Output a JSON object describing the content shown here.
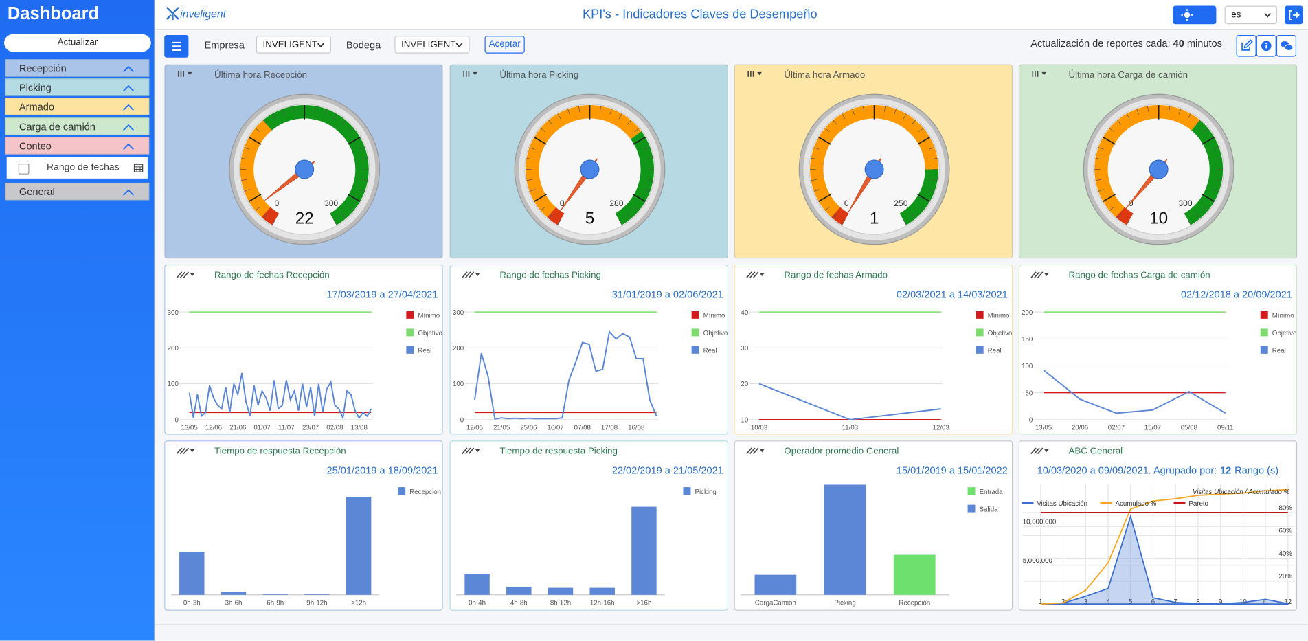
{
  "sidebar": {
    "title": "Dashboard",
    "refresh_button": "Actualizar",
    "sections": [
      "Recepción",
      "Picking",
      "Armado",
      "Carga de camión",
      "Conteo",
      "General"
    ],
    "date_filter": "Rango de fechas"
  },
  "header": {
    "logo": "inveligent",
    "title": "KPI's - Indicadores Claves de Desempeño",
    "language": "es"
  },
  "toolbar": {
    "company_label": "Empresa",
    "company": "INVELIGENT",
    "warehouse_label": "Bodega",
    "warehouse": "INVELIGENT",
    "accept": "Aceptar",
    "refresh_text": "Actualización de reportes cada:",
    "refresh_value": 40,
    "refresh_unit": "minutos"
  },
  "gauges": [
    {
      "title": "Última hora Recepción",
      "background": "#aec7e6",
      "min": 0,
      "max": 300,
      "value": 22,
      "bands": [
        {
          "from": 0,
          "to": 12,
          "color": "#dc3912"
        },
        {
          "from": 12,
          "to": 110,
          "color": "#ff9900"
        },
        {
          "from": 110,
          "to": 300,
          "color": "#109618"
        }
      ]
    },
    {
      "title": "Última hora Picking",
      "background": "#b6d9e3",
      "min": 0,
      "max": 280,
      "value": 5,
      "bands": [
        {
          "from": 0,
          "to": 11,
          "color": "#dc3912"
        },
        {
          "from": 11,
          "to": 190,
          "color": "#ff9900"
        },
        {
          "from": 190,
          "to": 280,
          "color": "#109618"
        }
      ]
    },
    {
      "title": "Última hora Armado",
      "background": "#fde6a6",
      "min": 0,
      "max": 250,
      "value": 1,
      "bands": [
        {
          "from": 0,
          "to": 10,
          "color": "#dc3912"
        },
        {
          "from": 10,
          "to": 200,
          "color": "#ff9900"
        },
        {
          "from": 200,
          "to": 250,
          "color": "#109618"
        }
      ]
    },
    {
      "title": "Última hora Carga de camión",
      "background": "#d0e7d0",
      "min": 0,
      "max": 300,
      "value": 10,
      "bands": [
        {
          "from": 0,
          "to": 12,
          "color": "#dc3912"
        },
        {
          "from": 12,
          "to": 190,
          "color": "#ff9900"
        },
        {
          "from": 190,
          "to": 300,
          "color": "#109618"
        }
      ]
    }
  ],
  "line_charts": [
    {
      "type": "line",
      "title": "Rango de fechas Recepción",
      "date_range": "17/03/2019 a 27/04/2021",
      "accent": "#a9c4e8",
      "ylim": [
        0,
        300
      ],
      "yticks": [
        0,
        100,
        200,
        300
      ],
      "categories": [
        "13/05",
        null,
        null,
        null,
        null,
        null,
        "12/06",
        null,
        null,
        null,
        null,
        null,
        "21/06",
        null,
        null,
        null,
        null,
        null,
        "01/07",
        null,
        null,
        null,
        null,
        null,
        "11/07",
        null,
        null,
        null,
        null,
        null,
        "23/07",
        null,
        null,
        null,
        null,
        null,
        "02/08",
        null,
        null,
        null,
        null,
        null,
        "13/08",
        null,
        null,
        null
      ],
      "series": [
        {
          "name": "Mínimo",
          "color": "#d01c1c",
          "values": [
            20,
            20,
            20,
            20,
            20,
            20,
            20,
            20,
            20,
            20,
            20,
            20,
            20,
            20,
            20,
            20,
            20,
            20,
            20,
            20,
            20,
            20,
            20,
            20,
            20,
            20,
            20,
            20,
            20,
            20,
            20,
            20,
            20,
            20,
            20,
            20,
            20,
            20,
            20,
            20,
            20,
            20,
            20,
            20,
            20,
            20
          ]
        },
        {
          "name": "Objetivo",
          "color": "#7ddc6d",
          "values": [
            300,
            300,
            300,
            300,
            300,
            300,
            300,
            300,
            300,
            300,
            300,
            300,
            300,
            300,
            300,
            300,
            300,
            300,
            300,
            300,
            300,
            300,
            300,
            300,
            300,
            300,
            300,
            300,
            300,
            300,
            300,
            300,
            300,
            300,
            300,
            300,
            300,
            300,
            300,
            300,
            300,
            300,
            300,
            300,
            300,
            300
          ]
        },
        {
          "name": "Real",
          "color": "#5b87d6",
          "values": [
            75,
            5,
            70,
            10,
            20,
            95,
            60,
            40,
            30,
            90,
            20,
            100,
            70,
            130,
            50,
            10,
            95,
            40,
            80,
            60,
            25,
            110,
            30,
            40,
            110,
            55,
            80,
            25,
            100,
            35,
            90,
            10,
            100,
            20,
            85,
            105,
            40,
            30,
            5,
            80,
            70,
            25,
            5,
            20,
            10,
            30
          ]
        }
      ]
    },
    {
      "type": "line",
      "title": "Rango de fechas Picking",
      "date_range": "31/01/2019 a 02/06/2021",
      "accent": "#b4dbe3",
      "ylim": [
        0,
        300
      ],
      "yticks": [
        0,
        100,
        200,
        300
      ],
      "categories": [
        "12/05",
        null,
        null,
        null,
        "21/05",
        null,
        null,
        null,
        "25/06",
        null,
        null,
        null,
        "16/07",
        null,
        null,
        null,
        "07/08",
        null,
        null,
        null,
        "17/08",
        null,
        null,
        null,
        "16/08",
        null,
        null,
        null
      ],
      "series": [
        {
          "name": "Mínimo",
          "color": "#d01c1c",
          "values": [
            20,
            20,
            20,
            20,
            20,
            20,
            20,
            20,
            20,
            20,
            20,
            20,
            20,
            20,
            20,
            20,
            20,
            20,
            20,
            20,
            20,
            20,
            20,
            20,
            20,
            20,
            20,
            20
          ]
        },
        {
          "name": "Objetivo",
          "color": "#7ddc6d",
          "values": [
            300,
            300,
            300,
            300,
            300,
            300,
            300,
            300,
            300,
            300,
            300,
            300,
            300,
            300,
            300,
            300,
            300,
            300,
            300,
            300,
            300,
            300,
            300,
            300,
            300,
            300,
            300,
            300
          ]
        },
        {
          "name": "Real",
          "color": "#5b87d6",
          "values": [
            55,
            185,
            120,
            2,
            5,
            3,
            4,
            3,
            4,
            3,
            3,
            3,
            3,
            5,
            110,
            160,
            215,
            210,
            135,
            140,
            245,
            225,
            240,
            230,
            170,
            170,
            55,
            10
          ]
        }
      ]
    },
    {
      "type": "line",
      "title": "Rango de fechas Armado",
      "date_range": "02/03/2021 a 14/03/2021",
      "accent": "#fde3a0",
      "ylim": [
        10,
        40
      ],
      "yticks": [
        10,
        20,
        30,
        40
      ],
      "categories": [
        "10/03",
        "11/03",
        "12/03"
      ],
      "series": [
        {
          "name": "Mínimo",
          "color": "#d01c1c",
          "values": [
            10,
            10,
            10
          ]
        },
        {
          "name": "Objetivo",
          "color": "#7ddc6d",
          "values": [
            40,
            40,
            40
          ]
        },
        {
          "name": "Real",
          "color": "#5b87d6",
          "values": [
            20,
            10,
            13
          ]
        }
      ]
    },
    {
      "type": "line",
      "title": "Rango de fechas Carga de camión",
      "date_range": "02/12/2018 a 20/09/2021",
      "accent": "#cde8cc",
      "ylim": [
        0,
        200
      ],
      "yticks": [
        0,
        50,
        100,
        150,
        200
      ],
      "categories": [
        "13/05",
        "20/06",
        "02/07",
        "15/07",
        "05/08",
        "09/11"
      ],
      "series": [
        {
          "name": "Mínimo",
          "color": "#d01c1c",
          "values": [
            50,
            50,
            50,
            50,
            50,
            50
          ]
        },
        {
          "name": "Objetivo",
          "color": "#7ddc6d",
          "values": [
            200,
            200,
            200,
            200,
            200,
            200
          ]
        },
        {
          "name": "Real",
          "color": "#5b87d6",
          "values": [
            92,
            38,
            12,
            18,
            52,
            12
          ]
        }
      ]
    }
  ],
  "bar_charts": [
    {
      "type": "bar",
      "title": "Tiempo de respuesta Recepción",
      "date_range": "25/01/2019 a 18/09/2021",
      "accent": "#a9c4e8",
      "categories": [
        "0h-3h",
        "3h-6h",
        "6h-9h",
        "9h-12h",
        ">12h"
      ],
      "series": [
        {
          "name": "Recepcion",
          "color": "#5b87d6",
          "values": [
            43,
            3,
            1,
            1,
            98
          ]
        }
      ]
    },
    {
      "type": "bar",
      "title": "Tiempo de respuesta Picking",
      "date_range": "22/02/2019 a 21/05/2021",
      "accent": "#b4dbe3",
      "categories": [
        "0h-4h",
        "4h-8h",
        "8h-12h",
        "12h-16h",
        ">16h"
      ],
      "series": [
        {
          "name": "Picking",
          "color": "#5b87d6",
          "values": [
            21,
            8,
            7,
            7,
            88
          ]
        }
      ]
    },
    {
      "type": "bar",
      "title": "Operador promedio General",
      "date_range": "15/01/2019 a 15/01/2022",
      "accent": "#c8c8cc",
      "categories": [
        "CargaCamion",
        "Picking",
        "Recepción"
      ],
      "series": [
        {
          "name": "Entrada",
          "color": "#6ee06e",
          "values": [
            0,
            0,
            40
          ]
        },
        {
          "name": "Salida",
          "color": "#5b87d6",
          "values": [
            20,
            110,
            0
          ]
        }
      ]
    }
  ],
  "abc": {
    "type": "combo",
    "title": "ABC General",
    "date_range": "10/03/2020 a 09/09/2021. Agrupado por:",
    "group_count": 12,
    "group_unit": "Rango (s)",
    "axis_title": "Visitas Ubicación / Acumulado %",
    "x": [
      1,
      2,
      3,
      4,
      5,
      6,
      7,
      8,
      9,
      10,
      11,
      12
    ],
    "xlim": [
      0.2,
      12.3
    ],
    "xticks": [
      1,
      2,
      3,
      4,
      5,
      6,
      7,
      8,
      9,
      10,
      11,
      12
    ],
    "ylim": [
      0,
      15500000
    ],
    "yticks": [
      {
        "value": 5000000,
        "label": "5,000,000"
      },
      {
        "value": 10000000,
        "label": "10,000,000"
      }
    ],
    "y2lim": [
      0,
      105
    ],
    "y2ticks": [
      {
        "value": 20,
        "label": "20%"
      },
      {
        "value": 40,
        "label": "40%"
      },
      {
        "value": 60,
        "label": "60%"
      },
      {
        "value": 80,
        "label": "80%"
      }
    ],
    "series": [
      {
        "name": "Visitas Ubicación",
        "color": "#3b6fd0",
        "values": [
          0,
          100000,
          1000000,
          2000000,
          11300000,
          800000,
          200000,
          50000,
          20000,
          200000,
          600000,
          50000
        ]
      },
      {
        "name": "Acumulado %",
        "color": "#f5a623",
        "axis": "y2",
        "values": [
          0,
          1,
          12,
          36,
          83,
          90,
          92,
          95,
          96,
          97,
          99,
          100
        ]
      },
      {
        "name": "Pareto",
        "color": "#c8161d",
        "axis": "y2",
        "values": [
          80,
          80,
          80,
          80,
          80,
          80,
          80,
          80,
          80,
          80,
          80,
          80
        ]
      }
    ]
  }
}
